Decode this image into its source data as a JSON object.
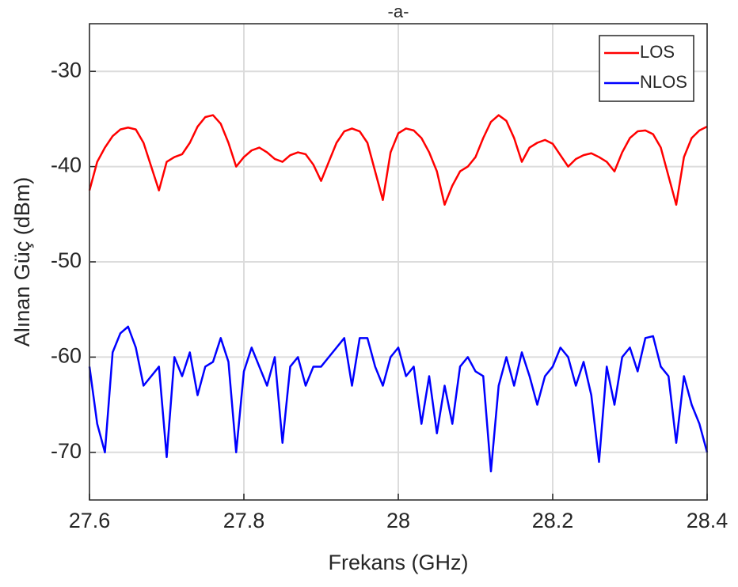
{
  "chart_data": {
    "type": "line",
    "title": "-a-",
    "x_label": "Frekans (GHz)",
    "y_label": "Alınan Güç (dBm)",
    "x": [
      27.6,
      27.61,
      27.62,
      27.63,
      27.64,
      27.65,
      27.66,
      27.67,
      27.68,
      27.69,
      27.7,
      27.71,
      27.72,
      27.73,
      27.74,
      27.75,
      27.76,
      27.77,
      27.78,
      27.79,
      27.8,
      27.81,
      27.82,
      27.83,
      27.84,
      27.85,
      27.86,
      27.87,
      27.88,
      27.89,
      27.9,
      27.91,
      27.92,
      27.93,
      27.94,
      27.95,
      27.96,
      27.97,
      27.98,
      27.99,
      28.0,
      28.01,
      28.02,
      28.03,
      28.04,
      28.05,
      28.06,
      28.07,
      28.08,
      28.09,
      28.1,
      28.11,
      28.12,
      28.13,
      28.14,
      28.15,
      28.16,
      28.17,
      28.18,
      28.19,
      28.2,
      28.21,
      28.22,
      28.23,
      28.24,
      28.25,
      28.26,
      28.27,
      28.28,
      28.29,
      28.3,
      28.31,
      28.32,
      28.33,
      28.34,
      28.35,
      28.36,
      28.37,
      28.38,
      28.39,
      28.4
    ],
    "series": [
      {
        "name": "LOS",
        "color": "#ff0000",
        "values": [
          -42.5,
          -39.5,
          -38,
          -36.8,
          -36.1,
          -35.9,
          -36.1,
          -37.5,
          -40,
          -42.5,
          -39.5,
          -39,
          -38.7,
          -37.5,
          -35.8,
          -34.8,
          -34.6,
          -35.5,
          -37.5,
          -40,
          -39,
          -38.3,
          -38,
          -38.5,
          -39.2,
          -39.5,
          -38.8,
          -38.5,
          -38.7,
          -39.8,
          -41.5,
          -39.5,
          -37.5,
          -36.3,
          -36,
          -36.3,
          -37.5,
          -40.5,
          -43.5,
          -38.5,
          -36.5,
          -36,
          -36.2,
          -37,
          -38.5,
          -40.5,
          -44,
          -42,
          -40.5,
          -40,
          -39,
          -37,
          -35.3,
          -34.6,
          -35.2,
          -37,
          -39.5,
          -38,
          -37.5,
          -37.2,
          -37.6,
          -38.8,
          -40,
          -39.2,
          -38.8,
          -38.6,
          -39,
          -39.5,
          -40.5,
          -38.5,
          -37,
          -36.3,
          -36.2,
          -36.6,
          -38,
          -41,
          -44,
          -39,
          -37,
          -36.2,
          -35.8
        ]
      },
      {
        "name": "NLOS",
        "color": "#0000ff",
        "values": [
          -61,
          -67,
          -70,
          -59.5,
          -57.5,
          -56.8,
          -59,
          -63,
          -62,
          -61,
          -70.5,
          -60,
          -62,
          -59.5,
          -64,
          -61,
          -60.5,
          -58,
          -60.5,
          -70,
          -61.5,
          -59,
          -61,
          -63,
          -60,
          -69,
          -61,
          -60,
          -63,
          -61,
          -61,
          -60,
          -59,
          -58,
          -63,
          -58,
          -58,
          -61,
          -63,
          -60,
          -59,
          -62,
          -61,
          -67,
          -62,
          -68,
          -63,
          -67,
          -61,
          -60,
          -61.5,
          -62,
          -72,
          -63,
          -60,
          -63,
          -59.5,
          -62,
          -65,
          -62,
          -61,
          -59,
          -60,
          -63,
          -60.5,
          -64,
          -71,
          -61,
          -65,
          -60,
          -59,
          -61.5,
          -58,
          -57.8,
          -61,
          -62,
          -69,
          -62,
          -65,
          -67,
          -70
        ]
      }
    ],
    "xlim": [
      27.6,
      28.4
    ],
    "xticks": [
      27.6,
      27.8,
      28,
      28.2,
      28.4
    ],
    "ylim": [
      -75,
      -25
    ],
    "yticks": [
      -70,
      -60,
      -50,
      -40,
      -30
    ],
    "grid": true,
    "legend": "top-right"
  }
}
